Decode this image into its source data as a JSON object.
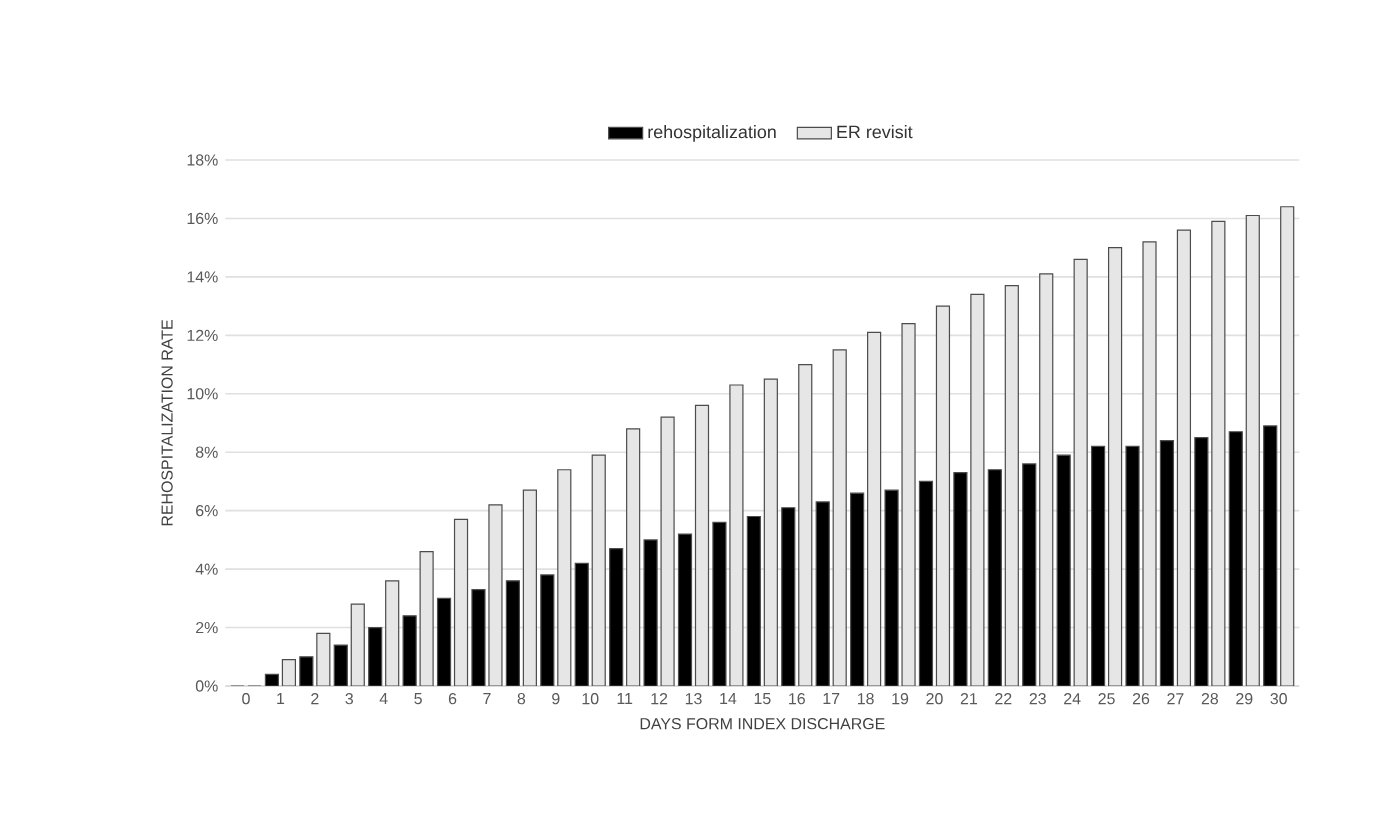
{
  "chart_data": {
    "type": "bar",
    "xlabel": "DAYS FORM INDEX DISCHARGE",
    "ylabel": "REHOSPITALIZATION RATE",
    "categories": [
      "0",
      "1",
      "2",
      "3",
      "4",
      "5",
      "6",
      "7",
      "8",
      "9",
      "10",
      "11",
      "12",
      "13",
      "14",
      "15",
      "16",
      "17",
      "18",
      "19",
      "20",
      "21",
      "22",
      "23",
      "24",
      "25",
      "26",
      "27",
      "28",
      "29",
      "30"
    ],
    "series": [
      {
        "name": "rehospitalization",
        "color": "#000000",
        "values": [
          0,
          0.4,
          1.0,
          1.4,
          2.0,
          2.4,
          3.0,
          3.3,
          3.6,
          3.8,
          4.2,
          4.7,
          5.0,
          5.2,
          5.6,
          5.8,
          6.1,
          6.3,
          6.6,
          6.7,
          7.0,
          7.3,
          7.4,
          7.6,
          7.9,
          8.2,
          8.2,
          8.4,
          8.5,
          8.7,
          8.9
        ]
      },
      {
        "name": "ER revisit",
        "color": "#e6e6e6",
        "values": [
          0,
          0.9,
          1.8,
          2.8,
          3.6,
          4.6,
          5.7,
          6.2,
          6.7,
          7.4,
          7.9,
          8.8,
          9.2,
          9.6,
          10.3,
          10.5,
          11.0,
          11.5,
          12.1,
          12.4,
          13.0,
          13.4,
          13.7,
          14.1,
          14.6,
          15.0,
          15.2,
          15.6,
          15.9,
          16.1,
          16.4
        ]
      }
    ],
    "ylim": [
      0,
      18
    ],
    "yticks": [
      {
        "value": 0,
        "label": "0%"
      },
      {
        "value": 2,
        "label": "2%"
      },
      {
        "value": 4,
        "label": "4%"
      },
      {
        "value": 6,
        "label": "6%"
      },
      {
        "value": 8,
        "label": "8%"
      },
      {
        "value": 10,
        "label": "10%"
      },
      {
        "value": 12,
        "label": "12%"
      },
      {
        "value": 14,
        "label": "14%"
      },
      {
        "value": 16,
        "label": "16%"
      },
      {
        "value": 18,
        "label": "18%"
      }
    ],
    "grid": "y",
    "legend": "top"
  }
}
